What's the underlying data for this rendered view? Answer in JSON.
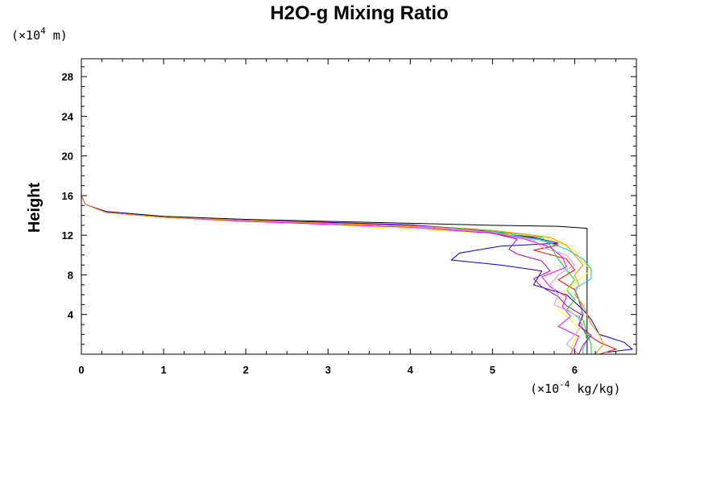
{
  "chart_data": {
    "type": "line",
    "title": "H2O-g Mixing Ratio",
    "xlabel": "",
    "ylabel": "Height",
    "x_unit": {
      "prefix": "(×10",
      "exp": "-4",
      "suffix": " kg/kg)"
    },
    "y_unit": {
      "prefix": "(×10",
      "exp": "4",
      "suffix": " m)"
    },
    "xlim": [
      0,
      6.75
    ],
    "ylim": [
      0,
      29.8
    ],
    "x_ticks": [
      0,
      1,
      2,
      3,
      4,
      5,
      6
    ],
    "y_ticks": [
      4,
      8,
      12,
      16,
      20,
      24,
      28
    ],
    "grid": false,
    "series": [
      {
        "color": "#000000",
        "points": [
          [
            0,
            29.8
          ],
          [
            0,
            16
          ],
          [
            0.05,
            15.1
          ],
          [
            0.3,
            14.4
          ],
          [
            1,
            13.9
          ],
          [
            2,
            13.6
          ],
          [
            3,
            13.4
          ],
          [
            4,
            13.2
          ],
          [
            5,
            13
          ],
          [
            5.8,
            12.9
          ],
          [
            6.15,
            12.7
          ],
          [
            6.15,
            0
          ]
        ]
      },
      {
        "color": "#0000cc",
        "points": [
          [
            0,
            29.8
          ],
          [
            0,
            16
          ],
          [
            0.05,
            15.1
          ],
          [
            0.3,
            14.4
          ],
          [
            1,
            13.8
          ],
          [
            2,
            13.5
          ],
          [
            3,
            13.3
          ],
          [
            4,
            13.05
          ],
          [
            4.7,
            12.6
          ],
          [
            5.5,
            11.8
          ],
          [
            5.8,
            11.2
          ],
          [
            5.1,
            10.9
          ],
          [
            4.6,
            10.2
          ],
          [
            4.5,
            9.5
          ],
          [
            5.1,
            9
          ],
          [
            5.6,
            8.4
          ],
          [
            5.5,
            7
          ],
          [
            5.9,
            6
          ],
          [
            6.1,
            4.5
          ],
          [
            6.2,
            3.5
          ],
          [
            6.3,
            2
          ],
          [
            6.6,
            1.2
          ],
          [
            6.7,
            0.5
          ],
          [
            6.4,
            0.2
          ]
        ]
      },
      {
        "color": "#ff0000",
        "points": [
          [
            0,
            29.8
          ],
          [
            0,
            16
          ],
          [
            0.05,
            15.1
          ],
          [
            0.3,
            14.3
          ],
          [
            1,
            13.8
          ],
          [
            2,
            13.5
          ],
          [
            3,
            13.2
          ],
          [
            4,
            12.9
          ],
          [
            4.8,
            12.4
          ],
          [
            5.5,
            11.7
          ],
          [
            5.8,
            11
          ],
          [
            5.5,
            10.5
          ],
          [
            5.9,
            9.6
          ],
          [
            6,
            8.5
          ],
          [
            5.8,
            7.5
          ],
          [
            6,
            6.5
          ],
          [
            6.05,
            5.5
          ],
          [
            6.1,
            4
          ],
          [
            6.05,
            3
          ],
          [
            6.15,
            2
          ],
          [
            6.3,
            1.2
          ],
          [
            6.5,
            0.5
          ],
          [
            6.3,
            0
          ]
        ]
      },
      {
        "color": "#00dd00",
        "points": [
          [
            0,
            29.8
          ],
          [
            0,
            16
          ],
          [
            0.05,
            15.1
          ],
          [
            0.3,
            14.3
          ],
          [
            1,
            13.8
          ],
          [
            2,
            13.5
          ],
          [
            3,
            13.2
          ],
          [
            4,
            12.9
          ],
          [
            5,
            12.4
          ],
          [
            5.6,
            11.8
          ],
          [
            5.7,
            11
          ],
          [
            5.8,
            9.6
          ],
          [
            5.9,
            8.5
          ],
          [
            6,
            7.5
          ],
          [
            5.9,
            6.5
          ],
          [
            6,
            5.5
          ],
          [
            5.9,
            4.5
          ],
          [
            6.1,
            3.5
          ],
          [
            6.15,
            2
          ],
          [
            6.2,
            1
          ],
          [
            6.2,
            0
          ]
        ]
      },
      {
        "color": "#ffff00",
        "points": [
          [
            0,
            29.8
          ],
          [
            0,
            16
          ],
          [
            0.05,
            15.1
          ],
          [
            0.3,
            14.3
          ],
          [
            1,
            13.8
          ],
          [
            2,
            13.5
          ],
          [
            3,
            13.1
          ],
          [
            4,
            12.6
          ],
          [
            5,
            12.2
          ],
          [
            5.6,
            11.9
          ],
          [
            5.8,
            11.3
          ],
          [
            6,
            10.4
          ],
          [
            6.1,
            9.3
          ],
          [
            6.2,
            8.5
          ],
          [
            6.05,
            7.5
          ],
          [
            5.9,
            6.5
          ],
          [
            5.8,
            5.5
          ],
          [
            5.8,
            4.5
          ],
          [
            5.95,
            3.5
          ],
          [
            6.05,
            2.5
          ],
          [
            6,
            1.5
          ],
          [
            5.95,
            0.5
          ],
          [
            6.05,
            0
          ]
        ]
      },
      {
        "color": "#00cccc",
        "points": [
          [
            0,
            29.8
          ],
          [
            0,
            16
          ],
          [
            0.05,
            15.1
          ],
          [
            0.3,
            14.3
          ],
          [
            1,
            13.8
          ],
          [
            2,
            13.5
          ],
          [
            3,
            13.2
          ],
          [
            4,
            12.9
          ],
          [
            5,
            12.3
          ],
          [
            5.6,
            11.5
          ],
          [
            5.9,
            10.6
          ],
          [
            6.1,
            9.6
          ],
          [
            6.2,
            8.6
          ],
          [
            6.2,
            7.6
          ],
          [
            6,
            6.6
          ],
          [
            6.05,
            5.6
          ],
          [
            6.1,
            4.6
          ],
          [
            6.05,
            3.6
          ],
          [
            6.1,
            2.6
          ],
          [
            6.15,
            1.5
          ],
          [
            6.1,
            0.5
          ],
          [
            6.1,
            0
          ]
        ]
      },
      {
        "color": "#ff00ff",
        "points": [
          [
            0,
            29.8
          ],
          [
            0,
            16
          ],
          [
            0.05,
            15.1
          ],
          [
            0.3,
            14.3
          ],
          [
            1,
            13.8
          ],
          [
            2,
            13.4
          ],
          [
            3,
            13.1
          ],
          [
            4,
            12.8
          ],
          [
            5,
            12.2
          ],
          [
            5.4,
            11.6
          ],
          [
            5.7,
            10.8
          ],
          [
            5.85,
            9.8
          ],
          [
            5.9,
            8.8
          ],
          [
            5.6,
            7.8
          ],
          [
            5.7,
            6.8
          ],
          [
            5.9,
            5.8
          ],
          [
            5.85,
            4.8
          ],
          [
            5.95,
            3.8
          ],
          [
            5.8,
            2.8
          ],
          [
            6.05,
            1.8
          ],
          [
            6,
            0.8
          ],
          [
            5.95,
            0
          ]
        ]
      },
      {
        "color": "#aa00aa",
        "points": [
          [
            0,
            29.8
          ],
          [
            0,
            16
          ],
          [
            0.05,
            15.1
          ],
          [
            0.3,
            14.3
          ],
          [
            1,
            13.8
          ],
          [
            2,
            13.5
          ],
          [
            3,
            13.25
          ],
          [
            4,
            13
          ],
          [
            4.8,
            12.6
          ],
          [
            5.3,
            11.6
          ],
          [
            5.2,
            10.6
          ],
          [
            5.3,
            10.1
          ],
          [
            5.6,
            9.4
          ],
          [
            5.7,
            8.4
          ],
          [
            5.5,
            7.6
          ],
          [
            5.6,
            6.8
          ],
          [
            5.8,
            5.8
          ],
          [
            5.9,
            4.9
          ],
          [
            6.1,
            3.9
          ],
          [
            6.05,
            2.9
          ],
          [
            6.2,
            1.9
          ],
          [
            6.1,
            0.9
          ],
          [
            6.05,
            0
          ]
        ]
      },
      {
        "color": "#cc99ff",
        "points": [
          [
            0,
            29.8
          ],
          [
            0,
            16
          ],
          [
            0.05,
            15.1
          ],
          [
            0.3,
            14.3
          ],
          [
            1,
            13.8
          ],
          [
            2,
            13.5
          ],
          [
            3,
            13.2
          ],
          [
            4,
            12.9
          ],
          [
            5,
            12.3
          ],
          [
            5.5,
            11.5
          ],
          [
            5.6,
            10.8
          ],
          [
            5.9,
            10
          ],
          [
            6,
            9
          ],
          [
            5.8,
            8
          ],
          [
            5.7,
            7
          ],
          [
            5.8,
            6
          ],
          [
            5.75,
            5
          ],
          [
            6,
            4
          ],
          [
            6.1,
            3
          ],
          [
            6,
            2
          ],
          [
            5.9,
            1
          ],
          [
            6.05,
            0
          ]
        ]
      },
      {
        "color": "#ff8800",
        "points": [
          [
            0,
            29.8
          ],
          [
            0,
            16
          ],
          [
            0.05,
            15.1
          ],
          [
            0.3,
            14.3
          ],
          [
            1,
            13.8
          ],
          [
            2,
            13.5
          ],
          [
            3,
            13.2
          ],
          [
            4,
            12.95
          ],
          [
            5,
            12.5
          ],
          [
            5.7,
            11.8
          ],
          [
            5.9,
            11
          ],
          [
            6,
            10
          ],
          [
            6.1,
            9
          ],
          [
            6,
            8
          ],
          [
            6.05,
            7
          ],
          [
            6,
            6
          ],
          [
            6.1,
            5
          ],
          [
            6.15,
            4
          ],
          [
            6.2,
            3
          ],
          [
            6.3,
            2
          ],
          [
            6.35,
            1
          ],
          [
            6.25,
            0
          ]
        ]
      }
    ]
  }
}
